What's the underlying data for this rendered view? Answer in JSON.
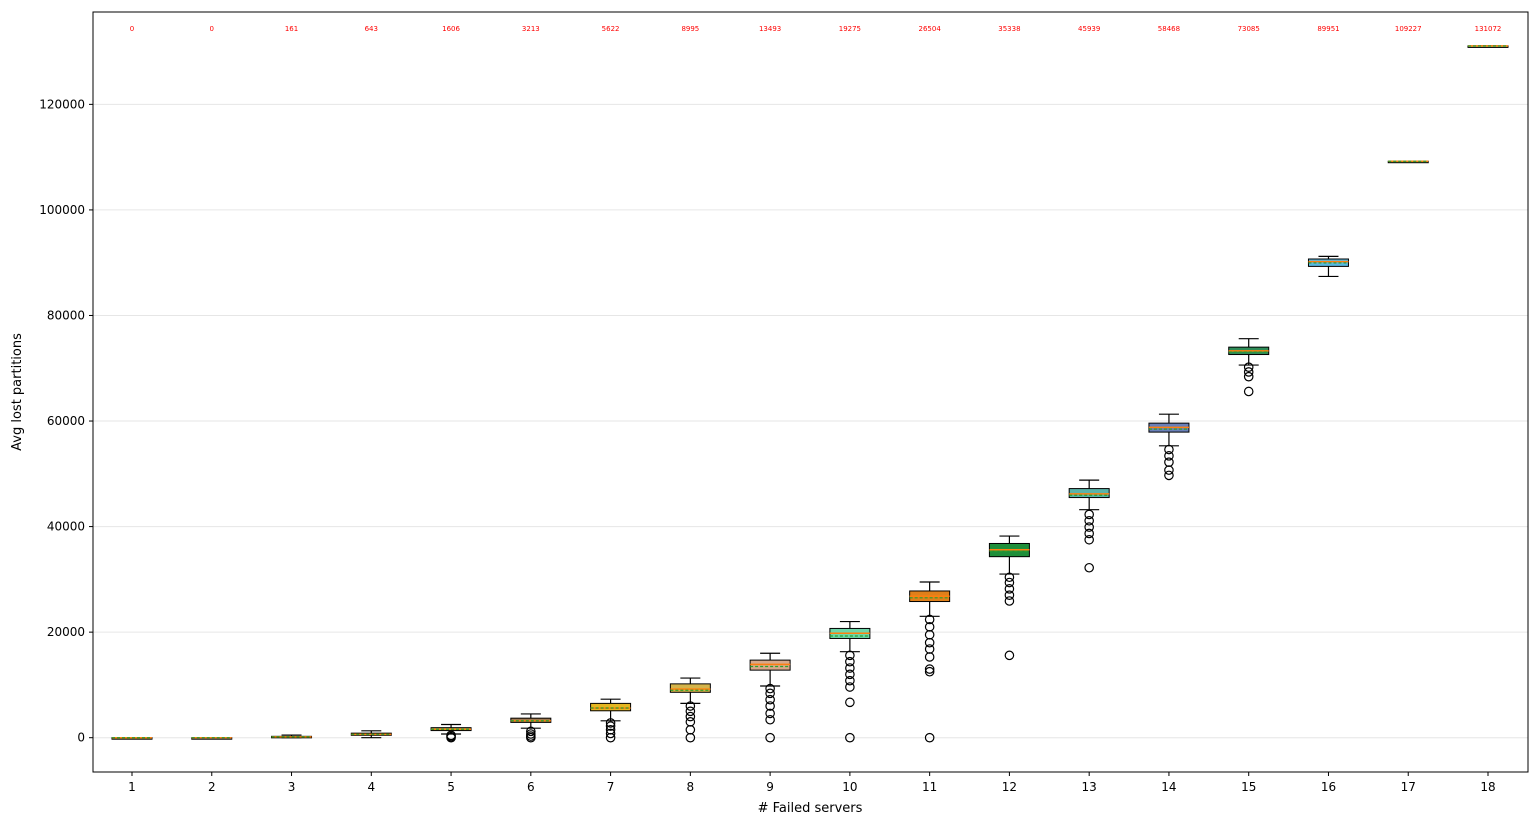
{
  "chart_data": {
    "type": "box",
    "title": "",
    "xlabel": "# Failed servers",
    "ylabel": "Avg lost partitions",
    "ylim": [
      -6500,
      137500
    ],
    "yticks": [
      0,
      20000,
      40000,
      60000,
      80000,
      100000,
      120000
    ],
    "grid": "horizontal",
    "categories": [
      "1",
      "2",
      "3",
      "4",
      "5",
      "6",
      "7",
      "8",
      "9",
      "10",
      "11",
      "12",
      "13",
      "14",
      "15",
      "16",
      "17",
      "18"
    ],
    "top_labels": [
      "0",
      "0",
      "161",
      "643",
      "1606",
      "3213",
      "5622",
      "8995",
      "13493",
      "19275",
      "26504",
      "35338",
      "45939",
      "58468",
      "73085",
      "89951",
      "109227",
      "131072"
    ],
    "boxes": [
      {
        "x": "1",
        "whislo": 0,
        "q1": 0,
        "med": 0,
        "q3": 0,
        "whishi": 0,
        "mean": 0,
        "color": "#8fd175",
        "fliers": []
      },
      {
        "x": "2",
        "whislo": 0,
        "q1": 0,
        "med": 0,
        "q3": 0,
        "whishi": 0,
        "mean": 0,
        "color": "#7fb3d5",
        "fliers": []
      },
      {
        "x": "3",
        "whislo": 0,
        "q1": 60,
        "med": 150,
        "q3": 260,
        "whishi": 500,
        "mean": 161,
        "color": "#4caf50",
        "fliers": []
      },
      {
        "x": "4",
        "whislo": 0,
        "q1": 450,
        "med": 640,
        "q3": 860,
        "whishi": 1300,
        "mean": 643,
        "color": "#e6a05a",
        "fliers": []
      },
      {
        "x": "5",
        "whislo": 700,
        "q1": 1350,
        "med": 1600,
        "q3": 1900,
        "whishi": 2500,
        "mean": 1606,
        "color": "#c9b458",
        "fliers": [
          0,
          200,
          450
        ]
      },
      {
        "x": "6",
        "whislo": 1800,
        "q1": 2900,
        "med": 3200,
        "q3": 3700,
        "whishi": 4500,
        "mean": 3213,
        "color": "#a07a50",
        "fliers": [
          0,
          300,
          700,
          1200
        ]
      },
      {
        "x": "7",
        "whislo": 3200,
        "q1": 5100,
        "med": 5600,
        "q3": 6500,
        "whishi": 7300,
        "mean": 5622,
        "color": "#e5b620",
        "fliers": [
          0,
          800,
          1500,
          2200,
          2800
        ]
      },
      {
        "x": "8",
        "whislo": 6500,
        "q1": 8600,
        "med": 9200,
        "q3": 10200,
        "whishi": 11300,
        "mean": 8995,
        "color": "#d4b44a",
        "fliers": [
          0,
          1500,
          3000,
          4000,
          5000,
          6000
        ]
      },
      {
        "x": "9",
        "whislo": 9800,
        "q1": 12800,
        "med": 13900,
        "q3": 14700,
        "whishi": 16000,
        "mean": 13493,
        "color": "#d8a88a",
        "fliers": [
          0,
          3400,
          4600,
          6000,
          7200,
          8400,
          9300
        ]
      },
      {
        "x": "10",
        "whislo": 16300,
        "q1": 18800,
        "med": 19800,
        "q3": 20700,
        "whishi": 22000,
        "mean": 19275,
        "color": "#6ed7a8",
        "fliers": [
          0,
          6700,
          9600,
          10800,
          12000,
          13200,
          14400,
          15600
        ]
      },
      {
        "x": "11",
        "whislo": 23000,
        "q1": 25800,
        "med": 26800,
        "q3": 27800,
        "whishi": 29500,
        "mean": 26504,
        "color": "#e0801a",
        "fliers": [
          0,
          12500,
          13000,
          15300,
          16800,
          18000,
          19500,
          21000,
          22400
        ]
      },
      {
        "x": "12",
        "whislo": 31000,
        "q1": 34300,
        "med": 35600,
        "q3": 36800,
        "whishi": 38200,
        "mean": 35338,
        "color": "#1f8f3a",
        "fliers": [
          15600,
          25900,
          27000,
          28200,
          29400,
          30400
        ]
      },
      {
        "x": "13",
        "whislo": 43200,
        "q1": 45500,
        "med": 46200,
        "q3": 47200,
        "whishi": 48800,
        "mean": 45939,
        "color": "#5ab4a8",
        "fliers": [
          32200,
          37500,
          38700,
          39900,
          41100,
          42300
        ]
      },
      {
        "x": "14",
        "whislo": 55300,
        "q1": 57900,
        "med": 58800,
        "q3": 59600,
        "whishi": 61300,
        "mean": 58468,
        "color": "#6a7fb8",
        "fliers": [
          49700,
          50700,
          52200,
          53400,
          54600
        ]
      },
      {
        "x": "15",
        "whislo": 70600,
        "q1": 72600,
        "med": 73300,
        "q3": 74000,
        "whishi": 75600,
        "mean": 73085,
        "color": "#2e8b57",
        "fliers": [
          65600,
          68400,
          69300,
          70200
        ]
      },
      {
        "x": "16",
        "whislo": 87400,
        "q1": 89300,
        "med": 90200,
        "q3": 90700,
        "whishi": 91200,
        "mean": 89951,
        "color": "#58b8e0",
        "fliers": []
      },
      {
        "x": "17",
        "whislo": 109227,
        "q1": 109227,
        "med": 109227,
        "q3": 109227,
        "whishi": 109227,
        "mean": 109227,
        "color": "#8fd175",
        "fliers": []
      },
      {
        "x": "18",
        "whislo": 131072,
        "q1": 131072,
        "med": 131072,
        "q3": 131072,
        "whishi": 131072,
        "mean": 131072,
        "color": "#8fd175",
        "fliers": []
      }
    ]
  }
}
